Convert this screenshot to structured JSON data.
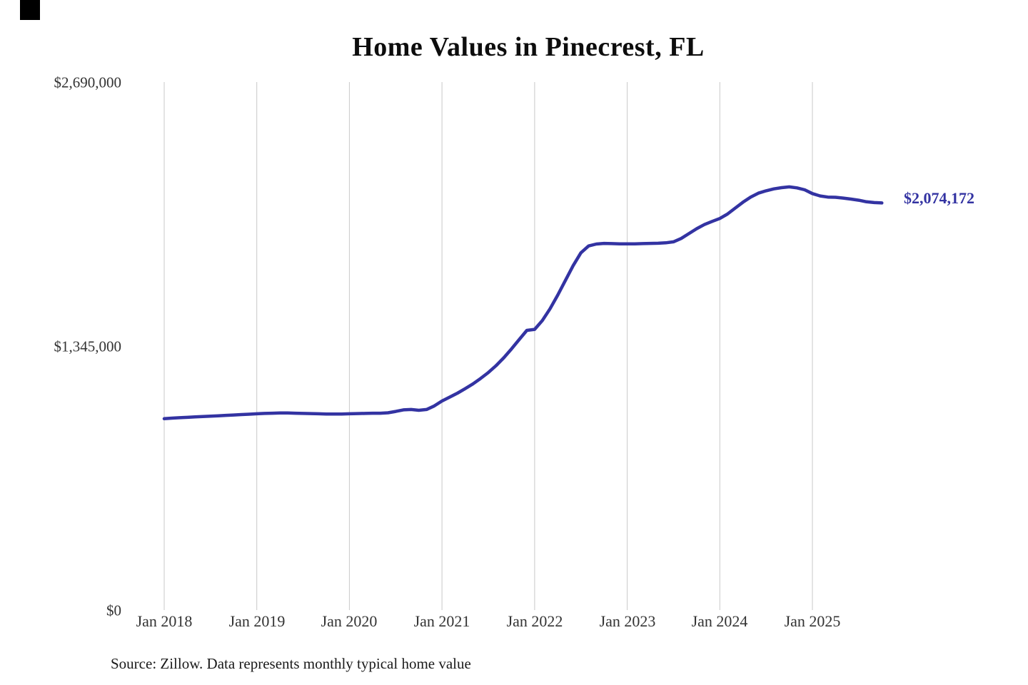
{
  "title": "Home Values in Pinecrest, FL",
  "source_note": "Source: Zillow. Data represents monthly typical home value",
  "end_label": "$2,074,172",
  "colors": {
    "line": "#3333a2",
    "grid": "#c8c8c8",
    "tick_text": "#333333",
    "title_text": "#0d0d0d"
  },
  "chart_data": {
    "type": "line",
    "title": "Home Values in Pinecrest, FL",
    "xlabel": "",
    "ylabel": "",
    "ylim": [
      0,
      2690000
    ],
    "grid": "vertical-only",
    "legend": "none",
    "y_tick_labels": [
      "$2,690,000",
      "$1,345,000",
      "$0"
    ],
    "y_tick_values": [
      2690000,
      1345000,
      0
    ],
    "x_tick_labels": [
      "Jan 2018",
      "Jan 2019",
      "Jan 2020",
      "Jan 2021",
      "Jan 2022",
      "Jan 2023",
      "Jan 2024",
      "Jan 2025"
    ],
    "series_name": "Monthly typical home value",
    "end_value": 2074172,
    "months": [
      "2018-01",
      "2018-02",
      "2018-03",
      "2018-04",
      "2018-05",
      "2018-06",
      "2018-07",
      "2018-08",
      "2018-09",
      "2018-10",
      "2018-11",
      "2018-12",
      "2019-01",
      "2019-02",
      "2019-03",
      "2019-04",
      "2019-05",
      "2019-06",
      "2019-07",
      "2019-08",
      "2019-09",
      "2019-10",
      "2019-11",
      "2019-12",
      "2020-01",
      "2020-02",
      "2020-03",
      "2020-04",
      "2020-05",
      "2020-06",
      "2020-07",
      "2020-08",
      "2020-09",
      "2020-10",
      "2020-11",
      "2020-12",
      "2021-01",
      "2021-02",
      "2021-03",
      "2021-04",
      "2021-05",
      "2021-06",
      "2021-07",
      "2021-08",
      "2021-09",
      "2021-10",
      "2021-11",
      "2021-12",
      "2022-01",
      "2022-02",
      "2022-03",
      "2022-04",
      "2022-05",
      "2022-06",
      "2022-07",
      "2022-08",
      "2022-09",
      "2022-10",
      "2022-11",
      "2022-12",
      "2023-01",
      "2023-02",
      "2023-03",
      "2023-04",
      "2023-05",
      "2023-06",
      "2023-07",
      "2023-08",
      "2023-09",
      "2023-10",
      "2023-11",
      "2023-12",
      "2024-01",
      "2024-02",
      "2024-03",
      "2024-04",
      "2024-05",
      "2024-06",
      "2024-07",
      "2024-08",
      "2024-09",
      "2024-10",
      "2024-11",
      "2024-12",
      "2025-01",
      "2025-02",
      "2025-03",
      "2025-04",
      "2025-05",
      "2025-06",
      "2025-07",
      "2025-08",
      "2025-09",
      "2025-10"
    ],
    "values": [
      975000,
      978000,
      980000,
      982000,
      984000,
      986000,
      988000,
      990000,
      992000,
      994000,
      996000,
      998000,
      1000000,
      1002000,
      1003000,
      1004000,
      1004000,
      1003000,
      1002000,
      1001000,
      1000000,
      999000,
      999000,
      999000,
      1000000,
      1001000,
      1002000,
      1003000,
      1003000,
      1005000,
      1012000,
      1020000,
      1022000,
      1018000,
      1022000,
      1040000,
      1065000,
      1085000,
      1105000,
      1128000,
      1152000,
      1180000,
      1210000,
      1245000,
      1285000,
      1330000,
      1378000,
      1425000,
      1430000,
      1475000,
      1535000,
      1605000,
      1680000,
      1755000,
      1820000,
      1855000,
      1865000,
      1868000,
      1867000,
      1866000,
      1866000,
      1866000,
      1867000,
      1868000,
      1869000,
      1871000,
      1876000,
      1893000,
      1918000,
      1943000,
      1964000,
      1980000,
      1995000,
      2018000,
      2048000,
      2078000,
      2104000,
      2124000,
      2136000,
      2146000,
      2152000,
      2156000,
      2151000,
      2141000,
      2122000,
      2110000,
      2104000,
      2103000,
      2099000,
      2094000,
      2088000,
      2080000,
      2076000,
      2074172
    ]
  }
}
